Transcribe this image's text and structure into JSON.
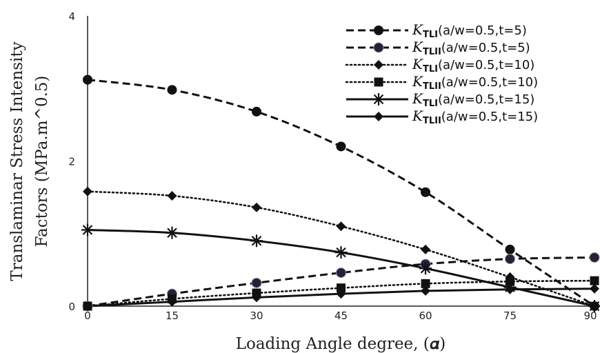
{
  "chart_data": {
    "type": "line",
    "xlabel": "Loading Angle degree, (𝜶)",
    "ylabel_line1": "Translaminar Stress Intensity",
    "ylabel_line2": "Factors (MPa.m^0.5)",
    "x": [
      0,
      15,
      30,
      45,
      60,
      75,
      90
    ],
    "xlim": [
      0,
      90
    ],
    "ylim": [
      0,
      4
    ],
    "x_ticks": [
      "0",
      "15",
      "30",
      "45",
      "60",
      "75",
      "90"
    ],
    "y_ticks": [
      "0",
      "2",
      "4"
    ],
    "grid": false,
    "legend_position": "top-right",
    "series": [
      {
        "name": "K_TLI(a/w=0.5,t=5)",
        "k_sub": "TLI",
        "params": "(a/w=0.5,t=5)",
        "dash": "long-dash",
        "marker": "circle",
        "values": [
          3.12,
          2.98,
          2.68,
          2.2,
          1.57,
          0.78,
          0.0
        ]
      },
      {
        "name": "K_TLII(a/w=0.5,t=5)",
        "k_sub": "TLII",
        "params": "(a/w=0.5,t=5)",
        "dash": "long-dash",
        "marker": "circle-dark",
        "values": [
          0.0,
          0.17,
          0.32,
          0.46,
          0.58,
          0.65,
          0.67
        ]
      },
      {
        "name": "K_TLI(a/w=0.5,t=10)",
        "k_sub": "TLI",
        "params": "(a/w=0.5,t=10)",
        "dash": "dotted",
        "marker": "diamond",
        "values": [
          1.58,
          1.52,
          1.36,
          1.1,
          0.78,
          0.4,
          0.0
        ]
      },
      {
        "name": "K_TLII(a/w=0.5,t=10)",
        "k_sub": "TLII",
        "params": "(a/w=0.5,t=10)",
        "dash": "dotted",
        "marker": "square",
        "values": [
          0.0,
          0.1,
          0.18,
          0.25,
          0.31,
          0.34,
          0.35
        ]
      },
      {
        "name": "K_TLI(a/w=0.5,t=15)",
        "k_sub": "TLI",
        "params": "(a/w=0.5,t=15)",
        "dash": "solid",
        "marker": "star",
        "values": [
          1.05,
          1.01,
          0.9,
          0.74,
          0.52,
          0.26,
          0.0
        ]
      },
      {
        "name": "K_TLII(a/w=0.5,t=15)",
        "k_sub": "TLII",
        "params": "(a/w=0.5,t=15)",
        "dash": "solid",
        "marker": "diamond",
        "values": [
          0.0,
          0.06,
          0.12,
          0.17,
          0.21,
          0.23,
          0.24
        ]
      }
    ]
  }
}
